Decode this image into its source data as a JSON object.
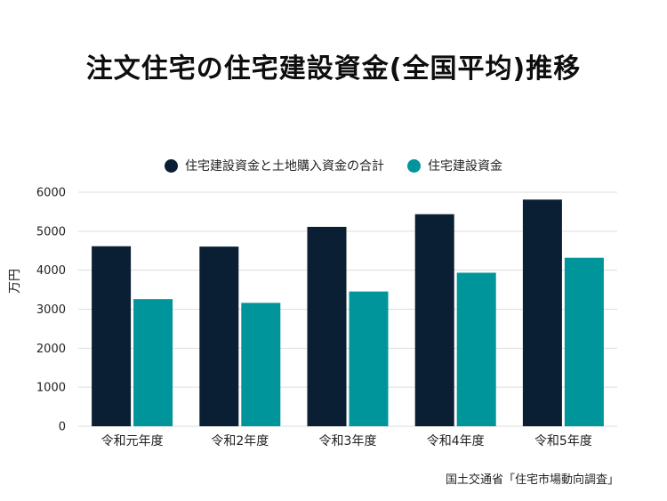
{
  "colors": {
    "series1": "#0a1f33",
    "series2": "#00959b",
    "grid": "#dddddd"
  },
  "chart_data": {
    "type": "bar",
    "title": "注文住宅の住宅建設資金(全国平均)推移",
    "ylabel": "万円",
    "xlabel": "",
    "ylim": [
      0,
      6000
    ],
    "yticks": [
      0,
      1000,
      2000,
      3000,
      4000,
      5000,
      6000
    ],
    "grid": true,
    "legend_position": "top-center",
    "categories": [
      "令和元年度",
      "令和2年度",
      "令和3年度",
      "令和4年度",
      "令和5年度"
    ],
    "series": [
      {
        "name": "住宅建設資金と土地購入資金の合計",
        "values": [
          4615,
          4606,
          5112,
          5436,
          5811
        ]
      },
      {
        "name": "住宅建設資金",
        "values": [
          3259,
          3163,
          3454,
          3936,
          4319
        ]
      }
    ],
    "source": "国土交通省「住宅市場動向調査」"
  }
}
